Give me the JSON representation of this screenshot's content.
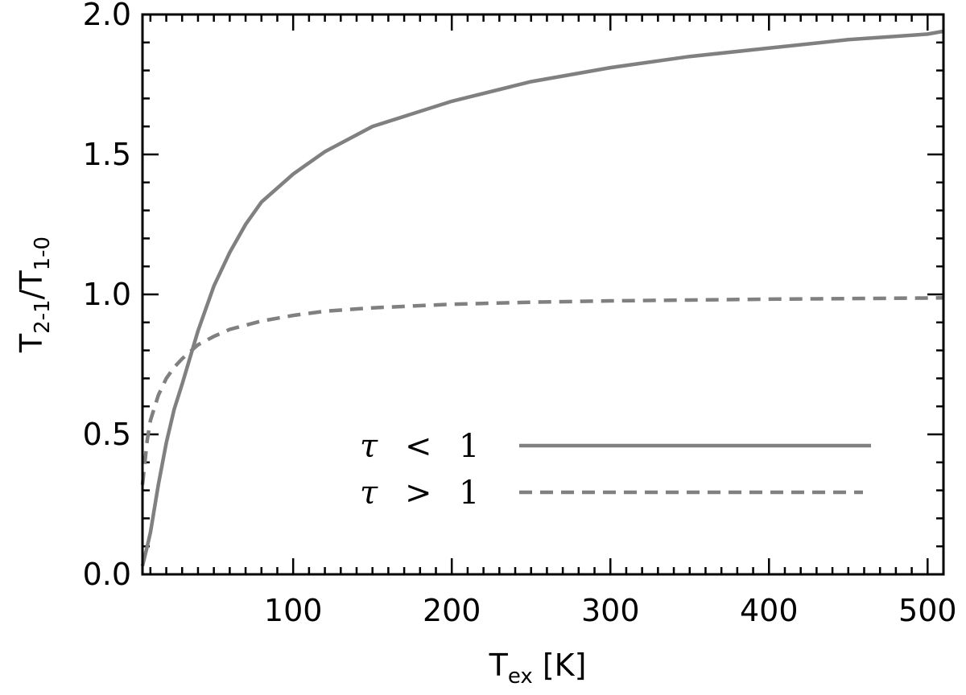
{
  "chart_data": {
    "type": "line",
    "title": "",
    "xlabel": {
      "base": "T",
      "sub": "ex",
      "unit": " [K]"
    },
    "ylabel": {
      "base1": "T",
      "sub1": "2-1",
      "slash": "/",
      "base2": "T",
      "sub2": "1-0"
    },
    "xlim": [
      5,
      510
    ],
    "ylim": [
      0.0,
      2.0
    ],
    "x_ticks": [
      100,
      200,
      300,
      400,
      500
    ],
    "x_tick_labels": [
      "100",
      "200",
      "300",
      "400",
      "500"
    ],
    "x_minor_step": 10,
    "y_ticks": [
      0.0,
      0.5,
      1.0,
      1.5,
      2.0
    ],
    "y_tick_labels": [
      "0.0",
      "0.5",
      "1.0",
      "1.5",
      "2.0"
    ],
    "y_minor_step": 0.1,
    "grid": false,
    "legend_position": "lower-right",
    "series": [
      {
        "name": "τ < 1",
        "legend": {
          "symbol": "τ",
          "op": "<",
          "value": "1"
        },
        "style": "solid",
        "color": "#808080",
        "x": [
          5,
          8,
          10,
          15,
          20,
          25,
          30,
          40,
          50,
          60,
          70,
          80,
          100,
          120,
          150,
          200,
          250,
          300,
          350,
          400,
          450,
          500,
          510
        ],
        "y": [
          0.03,
          0.1,
          0.15,
          0.32,
          0.47,
          0.59,
          0.68,
          0.87,
          1.03,
          1.15,
          1.25,
          1.33,
          1.43,
          1.51,
          1.6,
          1.69,
          1.76,
          1.81,
          1.85,
          1.88,
          1.91,
          1.93,
          1.94
        ]
      },
      {
        "name": "τ > 1",
        "legend": {
          "symbol": "τ",
          "op": ">",
          "value": "1"
        },
        "style": "dashed",
        "color": "#808080",
        "x": [
          5,
          8,
          10,
          15,
          20,
          25,
          30,
          40,
          50,
          60,
          70,
          80,
          100,
          120,
          150,
          200,
          250,
          300,
          350,
          400,
          450,
          500,
          510
        ],
        "y": [
          0.32,
          0.48,
          0.55,
          0.64,
          0.7,
          0.74,
          0.77,
          0.82,
          0.85,
          0.875,
          0.89,
          0.905,
          0.925,
          0.94,
          0.952,
          0.965,
          0.972,
          0.977,
          0.98,
          0.983,
          0.985,
          0.987,
          0.988
        ]
      }
    ]
  }
}
